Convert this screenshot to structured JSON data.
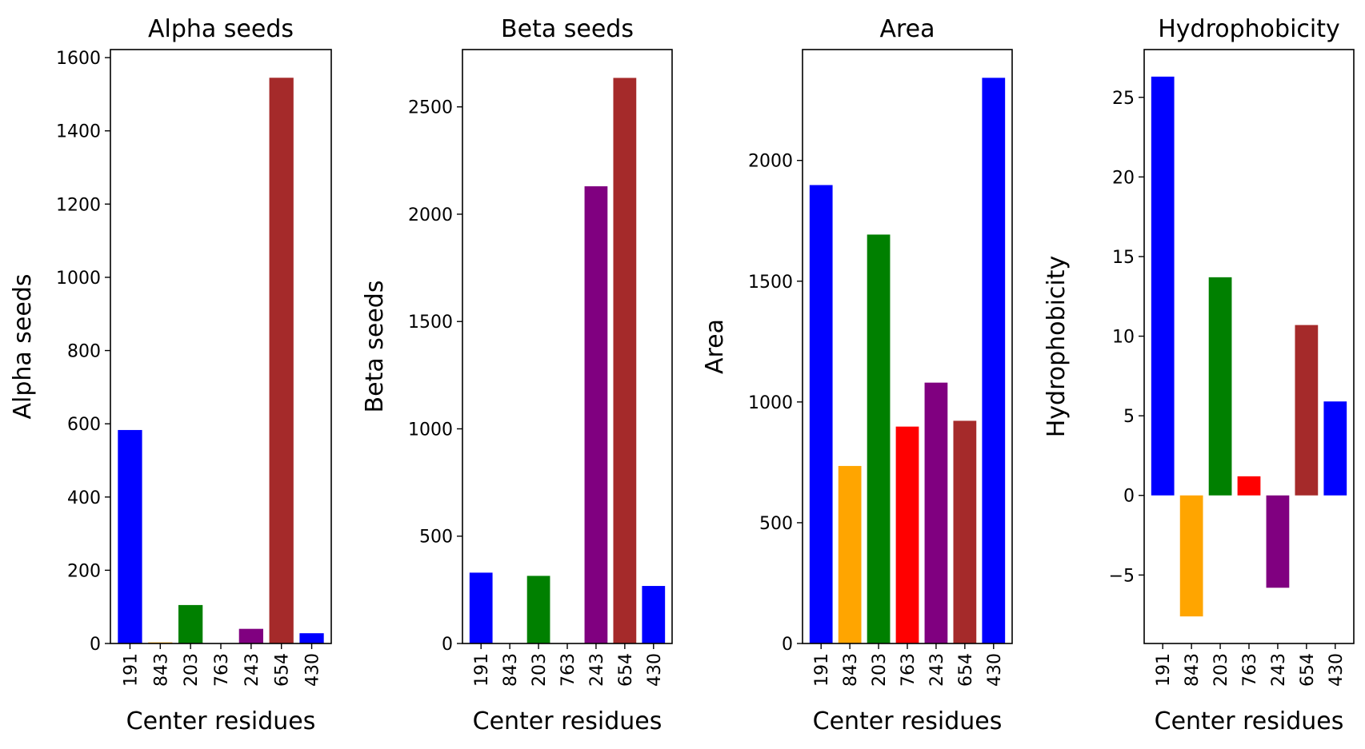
{
  "chart_data": [
    {
      "type": "bar",
      "title": "Alpha seeds",
      "xlabel": "Center residues",
      "ylabel": "Alpha seeds",
      "categories": [
        "191",
        "843",
        "203",
        "763",
        "243",
        "654",
        "430"
      ],
      "values": [
        583,
        3,
        105,
        0,
        40,
        1545,
        28
      ],
      "colors": [
        "#0000ff",
        "#ffa500",
        "#008000",
        "#ff0000",
        "#800080",
        "#a52a2a",
        "#0000ff"
      ],
      "ylim": [
        0,
        1622
      ],
      "yticks": [
        0,
        200,
        400,
        600,
        800,
        1000,
        1200,
        1400,
        1600
      ],
      "yticklabels": [
        "0",
        "200",
        "400",
        "600",
        "800",
        "1000",
        "1200",
        "1400",
        "1600"
      ],
      "grid": false
    },
    {
      "type": "bar",
      "title": "Beta seeds",
      "xlabel": "Center residues",
      "ylabel": "Beta seeds",
      "categories": [
        "191",
        "843",
        "203",
        "763",
        "243",
        "654",
        "430"
      ],
      "values": [
        330,
        0,
        315,
        0,
        2130,
        2635,
        268
      ],
      "colors": [
        "#0000ff",
        "#ffa500",
        "#008000",
        "#ff0000",
        "#800080",
        "#a52a2a",
        "#0000ff"
      ],
      "ylim": [
        0,
        2767
      ],
      "yticks": [
        0,
        500,
        1000,
        1500,
        2000,
        2500
      ],
      "yticklabels": [
        "0",
        "500",
        "1000",
        "1500",
        "2000",
        "2500"
      ],
      "grid": false
    },
    {
      "type": "bar",
      "title": "Area",
      "xlabel": "Center residues",
      "ylabel": "Area",
      "categories": [
        "191",
        "843",
        "203",
        "763",
        "243",
        "654",
        "430"
      ],
      "values": [
        1898,
        735,
        1693,
        898,
        1080,
        922,
        2342
      ],
      "colors": [
        "#0000ff",
        "#ffa500",
        "#008000",
        "#ff0000",
        "#800080",
        "#a52a2a",
        "#0000ff"
      ],
      "ylim": [
        0,
        2459
      ],
      "yticks": [
        0,
        500,
        1000,
        1500,
        2000
      ],
      "yticklabels": [
        "0",
        "500",
        "1000",
        "1500",
        "2000"
      ],
      "grid": false
    },
    {
      "type": "bar",
      "title": "Hydrophobicity",
      "xlabel": "Center residues",
      "ylabel": "Hydrophobicity",
      "categories": [
        "191",
        "843",
        "203",
        "763",
        "243",
        "654",
        "430"
      ],
      "values": [
        26.3,
        -7.6,
        13.7,
        1.2,
        -5.8,
        10.7,
        5.9
      ],
      "colors": [
        "#0000ff",
        "#ffa500",
        "#008000",
        "#ff0000",
        "#800080",
        "#a52a2a",
        "#0000ff"
      ],
      "ylim": [
        -9.3,
        28.0
      ],
      "yticks": [
        -5,
        0,
        5,
        10,
        15,
        20,
        25
      ],
      "yticklabels": [
        "−5",
        "0",
        "5",
        "10",
        "15",
        "20",
        "25"
      ],
      "grid": false
    }
  ]
}
